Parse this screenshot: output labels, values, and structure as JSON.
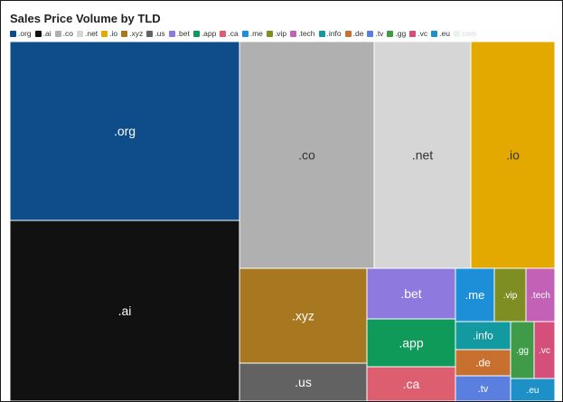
{
  "chart_data": {
    "type": "treemap",
    "title": "Sales Price Volume by TLD",
    "legend_position": "top-left",
    "items": [
      {
        "label": ".org",
        "value": 121.0,
        "color": "#0f4c8a",
        "text_color": "#ffffff"
      },
      {
        "label": ".ai",
        "value": 124.0,
        "color": "#111111",
        "text_color": "#ffffff"
      },
      {
        "label": ".co",
        "value": 107.8,
        "color": "#b0b0b0",
        "text_color": "#333333"
      },
      {
        "label": ".net",
        "value": 76.8,
        "color": "#d6d6d6",
        "text_color": "#333333"
      },
      {
        "label": ".io",
        "value": 65.6,
        "color": "#e4a900",
        "text_color": "#333333"
      },
      {
        "label": ".xyz",
        "value": 30.1,
        "color": "#a87820",
        "text_color": "#ffffff"
      },
      {
        "label": ".us",
        "value": 12.5,
        "color": "#626262",
        "text_color": "#ffffff"
      },
      {
        "label": ".bet",
        "value": 19.1,
        "color": "#8e79de",
        "text_color": "#ffffff"
      },
      {
        "label": ".app",
        "value": 18.1,
        "color": "#0f9a5a",
        "text_color": "#ffffff"
      },
      {
        "label": ".ca",
        "value": 13.5,
        "color": "#dd5f6f",
        "text_color": "#ffffff"
      },
      {
        "label": ".me",
        "value": 6.4,
        "color": "#1d8fd8",
        "text_color": "#ffffff"
      },
      {
        "label": ".vip",
        "value": 5.5,
        "color": "#7e8e22",
        "text_color": "#ffffff"
      },
      {
        "label": ".tech",
        "value": 5.0,
        "color": "#c261b5",
        "text_color": "#ffffff"
      },
      {
        "label": ".info",
        "value": 4.4,
        "color": "#139aa0",
        "text_color": "#ffffff"
      },
      {
        "label": ".de",
        "value": 4.3,
        "color": "#c8702f",
        "text_color": "#ffffff"
      },
      {
        "label": ".tv",
        "value": 3.8,
        "color": "#5a7fde",
        "text_color": "#ffffff"
      },
      {
        "label": ".gg",
        "value": 3.5,
        "color": "#3f9b48",
        "text_color": "#ffffff"
      },
      {
        "label": ".vc",
        "value": 3.3,
        "color": "#d4507a",
        "text_color": "#ffffff"
      },
      {
        "label": ".eu",
        "value": 3.0,
        "color": "#1e90c8",
        "text_color": "#ffffff"
      },
      {
        "label": "com",
        "value": 0,
        "color": "#e8f3ea",
        "text_color": "#333333"
      }
    ]
  }
}
